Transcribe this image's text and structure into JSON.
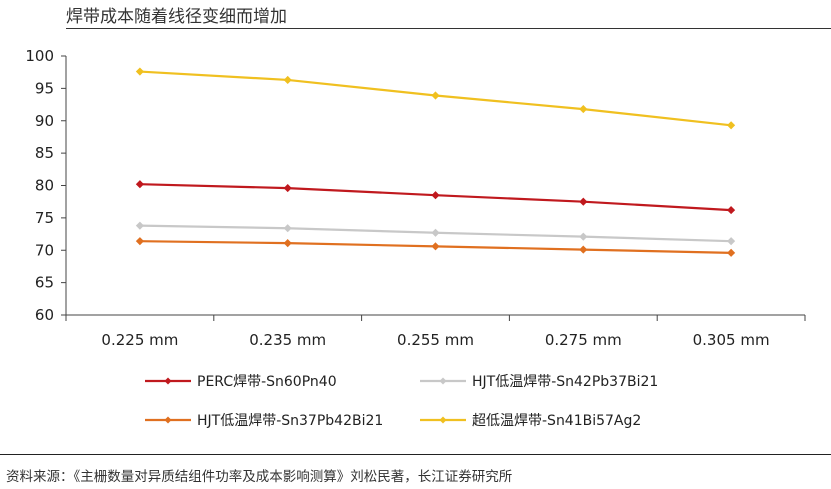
{
  "header": {
    "title": "焊带成本随着线径变细而增加"
  },
  "footer": {
    "source": "资料来源：《主栅数量对异质结组件功率及成本影响测算》刘松民著，长江证券研究所"
  },
  "chart_data": {
    "type": "line",
    "title": "焊带成本随着线径变细而增加",
    "xlabel": "",
    "ylabel": "",
    "categories": [
      "0.225 mm",
      "0.235 mm",
      "0.255 mm",
      "0.275 mm",
      "0.305 mm"
    ],
    "ylim": [
      60,
      100
    ],
    "yticks": [
      60,
      65,
      70,
      75,
      80,
      85,
      90,
      95,
      100
    ],
    "grid": false,
    "legend_position": "bottom",
    "series": [
      {
        "name": "PERC焊带-Sn60Pn40",
        "color": "#c0191e",
        "values": [
          80.2,
          79.6,
          78.5,
          77.5,
          76.2
        ]
      },
      {
        "name": "HJT低温焊带-Sn42Pb37Bi21",
        "color": "#c8c8c8",
        "values": [
          73.8,
          73.4,
          72.7,
          72.1,
          71.4
        ]
      },
      {
        "name": "HJT低温焊带-Sn37Pb42Bi21",
        "color": "#e07020",
        "values": [
          71.4,
          71.1,
          70.6,
          70.1,
          69.6
        ]
      },
      {
        "name": "超低温焊带-Sn41Bi57Ag2",
        "color": "#f0c020",
        "values": [
          97.6,
          96.3,
          93.9,
          91.8,
          89.3
        ]
      }
    ]
  }
}
